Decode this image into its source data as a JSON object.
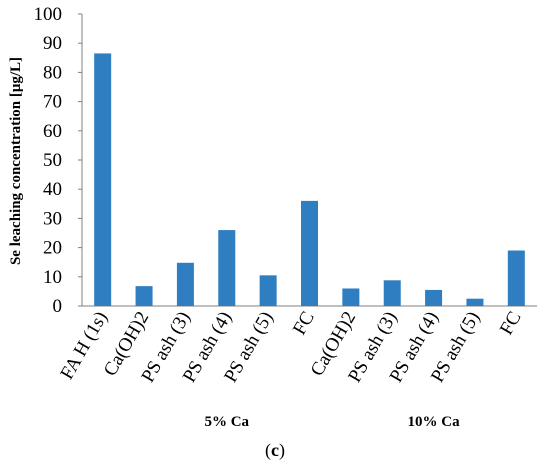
{
  "chart_data": {
    "type": "bar",
    "ylabel": "Se leaching concentration [μg/L]",
    "ylim": [
      0,
      100
    ],
    "yticks": [
      0,
      10,
      20,
      30,
      40,
      50,
      60,
      70,
      80,
      90,
      100
    ],
    "grid": false,
    "legend": "none",
    "categories": [
      "FA H (1s)",
      "Ca(OH)2",
      "PS ash (3)",
      "PS ash (4)",
      "PS ash (5)",
      "FC",
      "Ca(OH)2",
      "PS ash (3)",
      "PS ash (4)",
      "PS ash (5)",
      "FC"
    ],
    "values": [
      86.5,
      6.8,
      14.8,
      26,
      10.5,
      36,
      6,
      8.8,
      5.5,
      2.5,
      19
    ],
    "groups": [
      {
        "label": "5% Ca",
        "start": 1,
        "end": 5
      },
      {
        "label": "10% Ca",
        "start": 6,
        "end": 10
      }
    ],
    "bar_color": "#2E7EC1"
  },
  "caption": {
    "open": "(",
    "letter": "c",
    "close": ")"
  }
}
